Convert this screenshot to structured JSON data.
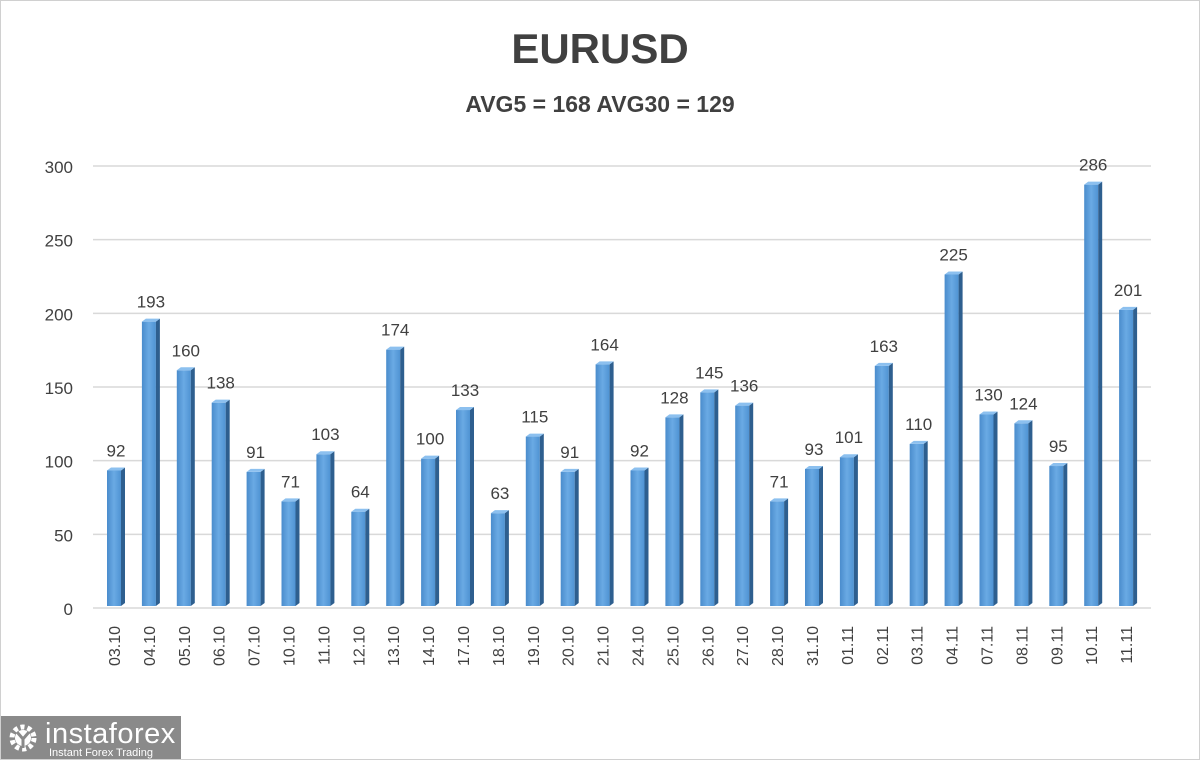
{
  "chart_data": {
    "type": "bar",
    "title": "EURUSD",
    "subtitle": "AVG5 = 168 AVG30 = 129",
    "xlabel": "",
    "ylabel": "",
    "ylim": [
      0,
      300
    ],
    "yticks": [
      0,
      50,
      100,
      150,
      200,
      250,
      300
    ],
    "grid": true,
    "legend": "none",
    "bar_color": "#5b9bd5",
    "categories": [
      "03.10",
      "04.10",
      "05.10",
      "06.10",
      "07.10",
      "10.10",
      "11.10",
      "12.10",
      "13.10",
      "14.10",
      "17.10",
      "18.10",
      "19.10",
      "20.10",
      "21.10",
      "24.10",
      "25.10",
      "26.10",
      "27.10",
      "28.10",
      "31.10",
      "01.11",
      "02.11",
      "03.11",
      "04.11",
      "07.11",
      "08.11",
      "09.11",
      "10.11",
      "11.11"
    ],
    "values": [
      92,
      193,
      160,
      138,
      91,
      71,
      103,
      64,
      174,
      100,
      133,
      63,
      115,
      91,
      164,
      92,
      128,
      145,
      136,
      71,
      93,
      101,
      163,
      110,
      225,
      130,
      124,
      95,
      286,
      201
    ]
  },
  "logo": {
    "name": "instaforex",
    "tagline": "Instant Forex Trading"
  }
}
